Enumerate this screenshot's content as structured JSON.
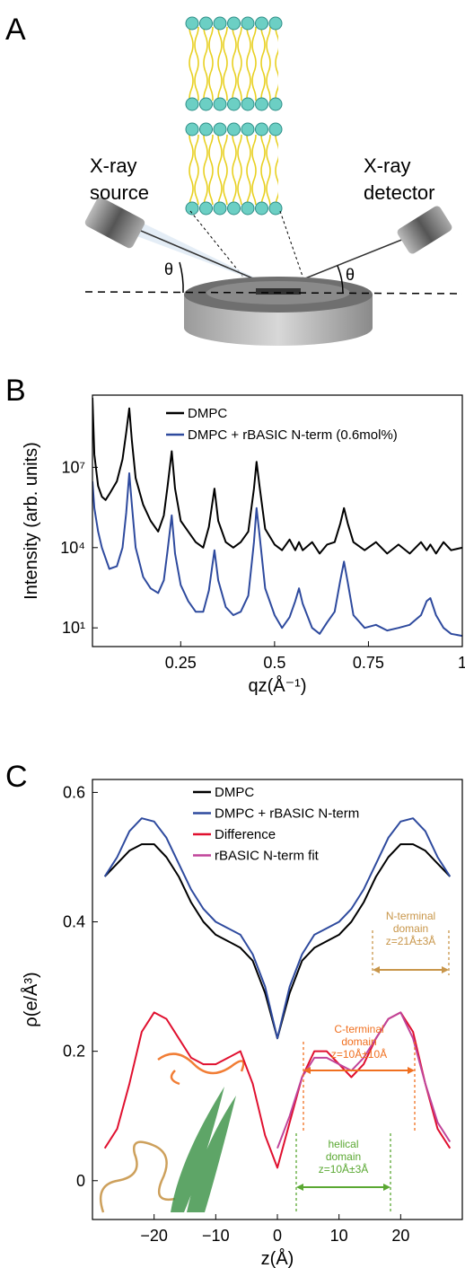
{
  "diagram": {
    "panel_label": "A",
    "source_label": [
      "X-ray",
      "source"
    ],
    "detector_label": [
      "X-ray",
      "detector"
    ],
    "angle_labels": [
      "θ",
      "θ"
    ]
  },
  "chart_data": [
    {
      "type": "line",
      "panel_label": "B",
      "x_label": "qz(Å⁻¹)",
      "y_label": "Intensity (arb. units)",
      "log_y": true,
      "legend": "top",
      "xlim": [
        0.015,
        1
      ],
      "ylim": [
        2,
        5000000000.0
      ],
      "xticks": [
        0.25,
        0.5,
        0.75,
        1
      ],
      "yticks": [
        {
          "value": 10,
          "label": "10¹"
        },
        {
          "value": 10000,
          "label": "10⁴"
        },
        {
          "value": 10000000,
          "label": "10⁷"
        }
      ],
      "x": [
        0.015,
        0.02,
        0.03,
        0.04,
        0.05,
        0.06,
        0.08,
        0.095,
        0.105,
        0.113,
        0.12,
        0.13,
        0.15,
        0.17,
        0.19,
        0.205,
        0.215,
        0.226,
        0.235,
        0.25,
        0.27,
        0.29,
        0.31,
        0.325,
        0.34,
        0.35,
        0.37,
        0.39,
        0.41,
        0.43,
        0.445,
        0.452,
        0.46,
        0.475,
        0.5,
        0.52,
        0.54,
        0.555,
        0.565,
        0.575,
        0.6,
        0.62,
        0.64,
        0.66,
        0.675,
        0.685,
        0.695,
        0.71,
        0.74,
        0.77,
        0.8,
        0.83,
        0.86,
        0.89,
        0.905,
        0.915,
        0.93,
        0.95,
        0.97,
        1.0
      ],
      "series": [
        {
          "name": "DMPC",
          "color": "#000000",
          "values": [
            4000000000.0,
            30000000.0,
            2000000.0,
            800000.0,
            600000.0,
            1000000.0,
            3000000.0,
            20000000.0,
            200000000.0,
            1600000000.0,
            100000000.0,
            4000000.0,
            400000.0,
            100000.0,
            40000.0,
            160000.0,
            2000000.0,
            40000000.0,
            1600000.0,
            100000.0,
            40000.0,
            16000.0,
            10000.0,
            60000.0,
            1600000.0,
            100000.0,
            16000.0,
            10000.0,
            16000.0,
            40000.0,
            1600000.0,
            16000000.0,
            2000000.0,
            50000.0,
            13000.0,
            8000.0,
            20000.0,
            8000.0,
            16000.0,
            8000.0,
            16000.0,
            6000.0,
            13000.0,
            16000.0,
            80000.0,
            300000.0,
            80000.0,
            16000.0,
            8000.0,
            16000.0,
            6000.0,
            13000.0,
            6000.0,
            16000.0,
            8000.0,
            13000.0,
            6000.0,
            16000.0,
            8000.0,
            10000.0
          ]
        },
        {
          "name": "DMPC + rBASIC N-term (0.6mol%)",
          "color": "#2e4a9e",
          "values": [
            3000000.0,
            300000.0,
            40000.0,
            10000.0,
            4000.0,
            1600.0,
            2000.0,
            10000.0,
            200000.0,
            6000000.0,
            400000.0,
            10000.0,
            800,
            300,
            200,
            600,
            8000.0,
            160000.0,
            6000.0,
            400,
            100,
            40,
            40,
            250,
            8000.0,
            600,
            60,
            30,
            40,
            160,
            16000.0,
            300000.0,
            30000.0,
            300,
            30,
            10,
            25,
            100,
            300,
            80,
            10,
            6,
            16,
            40,
            600,
            3000.0,
            500,
            30,
            10,
            13,
            8,
            10,
            13,
            30,
            100,
            130,
            30,
            10,
            6,
            5
          ]
        }
      ]
    },
    {
      "type": "line",
      "panel_label": "C",
      "x_label": "z(Å)",
      "y_label": "ρ(e/Å³)",
      "log_y": false,
      "legend": "top",
      "xlim": [
        -30,
        30
      ],
      "ylim": [
        -0.06,
        0.62
      ],
      "xticks": [
        {
          "value": -20,
          "label": "−20"
        },
        {
          "value": -10,
          "label": "−10"
        },
        0,
        10,
        20
      ],
      "yticks": [
        0,
        0.2,
        0.4,
        0.6
      ],
      "x": [
        -28,
        -26,
        -24,
        -22,
        -20,
        -18,
        -16,
        -14,
        -12,
        -10,
        -8,
        -6,
        -4,
        -2,
        0,
        2,
        4,
        6,
        8,
        10,
        12,
        14,
        16,
        18,
        20,
        22,
        24,
        26,
        28
      ],
      "series": [
        {
          "name": "DMPC",
          "color": "#000000",
          "values": [
            0.47,
            0.49,
            0.51,
            0.52,
            0.52,
            0.5,
            0.47,
            0.43,
            0.4,
            0.38,
            0.37,
            0.36,
            0.34,
            0.29,
            0.22,
            0.29,
            0.34,
            0.36,
            0.37,
            0.38,
            0.4,
            0.43,
            0.47,
            0.5,
            0.52,
            0.52,
            0.51,
            0.49,
            0.47
          ]
        },
        {
          "name": "DMPC + rBASIC N-term",
          "color": "#2e4a9e",
          "values": [
            0.47,
            0.5,
            0.54,
            0.56,
            0.555,
            0.53,
            0.49,
            0.45,
            0.42,
            0.4,
            0.39,
            0.38,
            0.35,
            0.3,
            0.22,
            0.3,
            0.35,
            0.38,
            0.39,
            0.4,
            0.42,
            0.45,
            0.49,
            0.53,
            0.555,
            0.56,
            0.54,
            0.5,
            0.47
          ]
        },
        {
          "name": "Difference",
          "color": "#e0102f",
          "values": [
            0.05,
            0.08,
            0.15,
            0.23,
            0.26,
            0.25,
            0.22,
            0.19,
            0.18,
            0.18,
            0.19,
            0.2,
            0.15,
            0.07,
            0.02,
            0.09,
            0.16,
            0.2,
            0.2,
            0.18,
            0.16,
            0.18,
            0.22,
            0.25,
            0.26,
            0.23,
            0.15,
            0.08,
            0.05
          ]
        },
        {
          "name": "rBASIC N-term fit",
          "color": "#c0449a",
          "values": [
            null,
            null,
            null,
            null,
            null,
            null,
            null,
            null,
            null,
            null,
            null,
            null,
            null,
            null,
            0.05,
            0.1,
            0.16,
            0.19,
            0.19,
            0.18,
            0.17,
            0.19,
            0.22,
            0.25,
            0.26,
            0.22,
            0.15,
            0.09,
            0.06
          ]
        }
      ],
      "annotations": [
        {
          "lines": [
            "N-terminal",
            "domain",
            "z=21Å±3Å"
          ],
          "color": "#c8964a"
        },
        {
          "lines": [
            "C-terminal",
            "domain",
            "z=10Å±10Å"
          ],
          "color": "#f07020"
        },
        {
          "lines": [
            "helical",
            "domain",
            "z=10Å±3Å"
          ],
          "color": "#5aa832"
        }
      ]
    }
  ]
}
